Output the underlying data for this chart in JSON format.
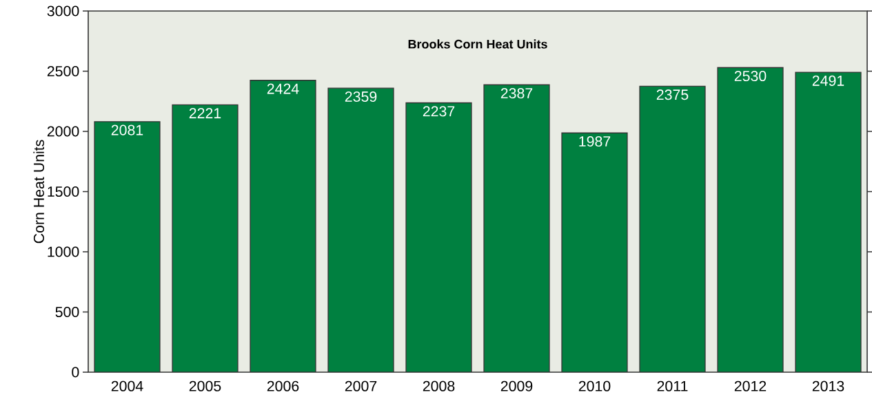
{
  "chart_data": {
    "type": "bar",
    "title": "Brooks Corn Heat Units",
    "ylabel": "Corn Heat Units",
    "categories": [
      "2004",
      "2005",
      "2006",
      "2007",
      "2008",
      "2009",
      "2010",
      "2011",
      "2012",
      "2013"
    ],
    "values": [
      2081,
      2221,
      2424,
      2359,
      2237,
      2387,
      1987,
      2375,
      2530,
      2491
    ],
    "color": "#008040",
    "ylim": [
      0,
      3000
    ],
    "yticks": [
      0,
      500,
      1000,
      1500,
      2000,
      2500,
      3000
    ],
    "data_labels": true
  }
}
